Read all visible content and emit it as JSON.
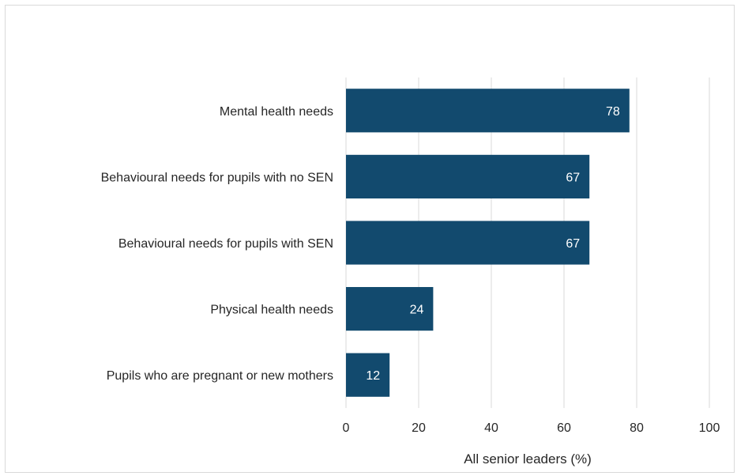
{
  "chart_data": {
    "type": "bar",
    "orientation": "horizontal",
    "categories": [
      "Mental health needs",
      "Behavioural needs for pupils with no SEN",
      "Behavioural needs for pupils with SEN",
      "Physical health needs",
      "Pupils who are pregnant or new mothers"
    ],
    "values": [
      78,
      67,
      67,
      24,
      12
    ],
    "data_labels": [
      "78",
      "67",
      "67",
      "24",
      "12"
    ],
    "xlabel": "All senior leaders (%)",
    "xlim": [
      0,
      100
    ],
    "xticks": [
      0,
      20,
      40,
      60,
      80,
      100
    ],
    "xtick_labels": [
      "0",
      "20",
      "40",
      "60",
      "80",
      "100"
    ],
    "bar_color": "#124A6E",
    "grid": true,
    "legend": "none"
  }
}
